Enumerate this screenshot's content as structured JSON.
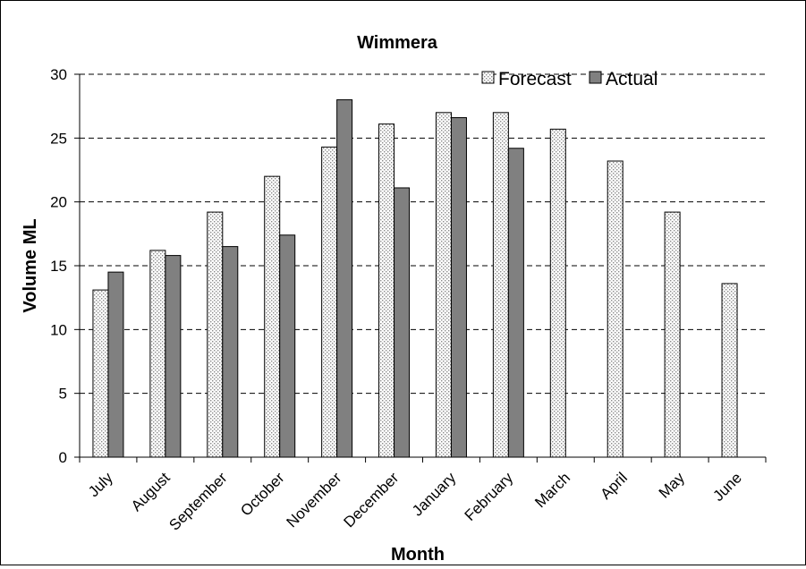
{
  "chart_data": {
    "type": "bar",
    "title": "Wimmera",
    "xlabel": "Month",
    "ylabel": "Volume ML",
    "ylim": [
      0,
      30
    ],
    "yticks": [
      0,
      5,
      10,
      15,
      20,
      25,
      30
    ],
    "grid": "horizontal dashed",
    "legend_position": "top-right",
    "categories": [
      "July",
      "August",
      "September",
      "October",
      "November",
      "December",
      "January",
      "February",
      "March",
      "April",
      "May",
      "June"
    ],
    "series": [
      {
        "name": "Forecast",
        "color": "#f2f2f2",
        "pattern": "dotted",
        "values": [
          13.1,
          16.2,
          19.2,
          22.0,
          24.3,
          26.1,
          27.0,
          27.0,
          25.7,
          23.2,
          19.2,
          13.6
        ]
      },
      {
        "name": "Actual",
        "color": "#808080",
        "pattern": "solid",
        "values": [
          14.5,
          15.8,
          16.5,
          17.4,
          28.0,
          21.1,
          26.6,
          24.2,
          null,
          null,
          null,
          null
        ]
      }
    ]
  }
}
